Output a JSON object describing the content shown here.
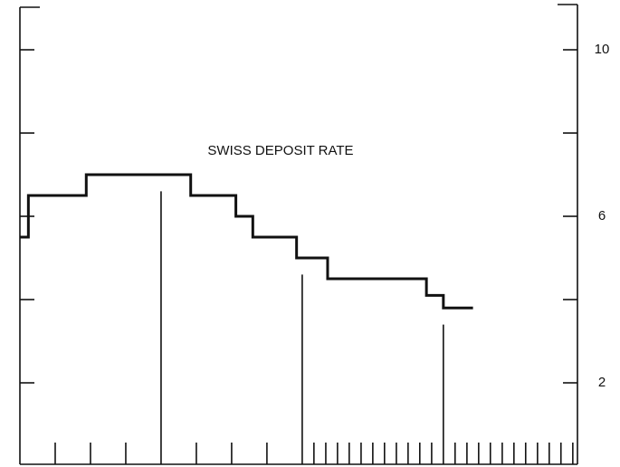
{
  "chart_data": {
    "type": "line",
    "step": "post",
    "annotation": "SWISS DEPOSIT RATE",
    "x": [
      0,
      0.06,
      0.47,
      1.21,
      1.53,
      1.65,
      1.96,
      2.18,
      2.88,
      3.0,
      3.21
    ],
    "values": [
      5.5,
      6.5,
      7.0,
      6.5,
      6.0,
      5.5,
      5.0,
      4.5,
      4.1,
      3.8,
      3.8
    ],
    "color": "#111111",
    "xlim": [
      0,
      3.95
    ],
    "ylim": [
      0,
      11
    ],
    "yticks": [
      2,
      6,
      10
    ],
    "yminorticks": [
      4,
      8
    ],
    "xminorticks": [
      0.25,
      0.5,
      0.75,
      1.25,
      1.5,
      1.75,
      2.083,
      2.167,
      2.25,
      2.333,
      2.417,
      2.5,
      2.583,
      2.667,
      2.75,
      2.833,
      2.917,
      3.083,
      3.167,
      3.25,
      3.333,
      3.417,
      3.5,
      3.583,
      3.667,
      3.75,
      3.833,
      3.917
    ],
    "year_lines": {
      "x": [
        1,
        2,
        3
      ],
      "tops": [
        6.6,
        4.6,
        3.4
      ]
    }
  }
}
